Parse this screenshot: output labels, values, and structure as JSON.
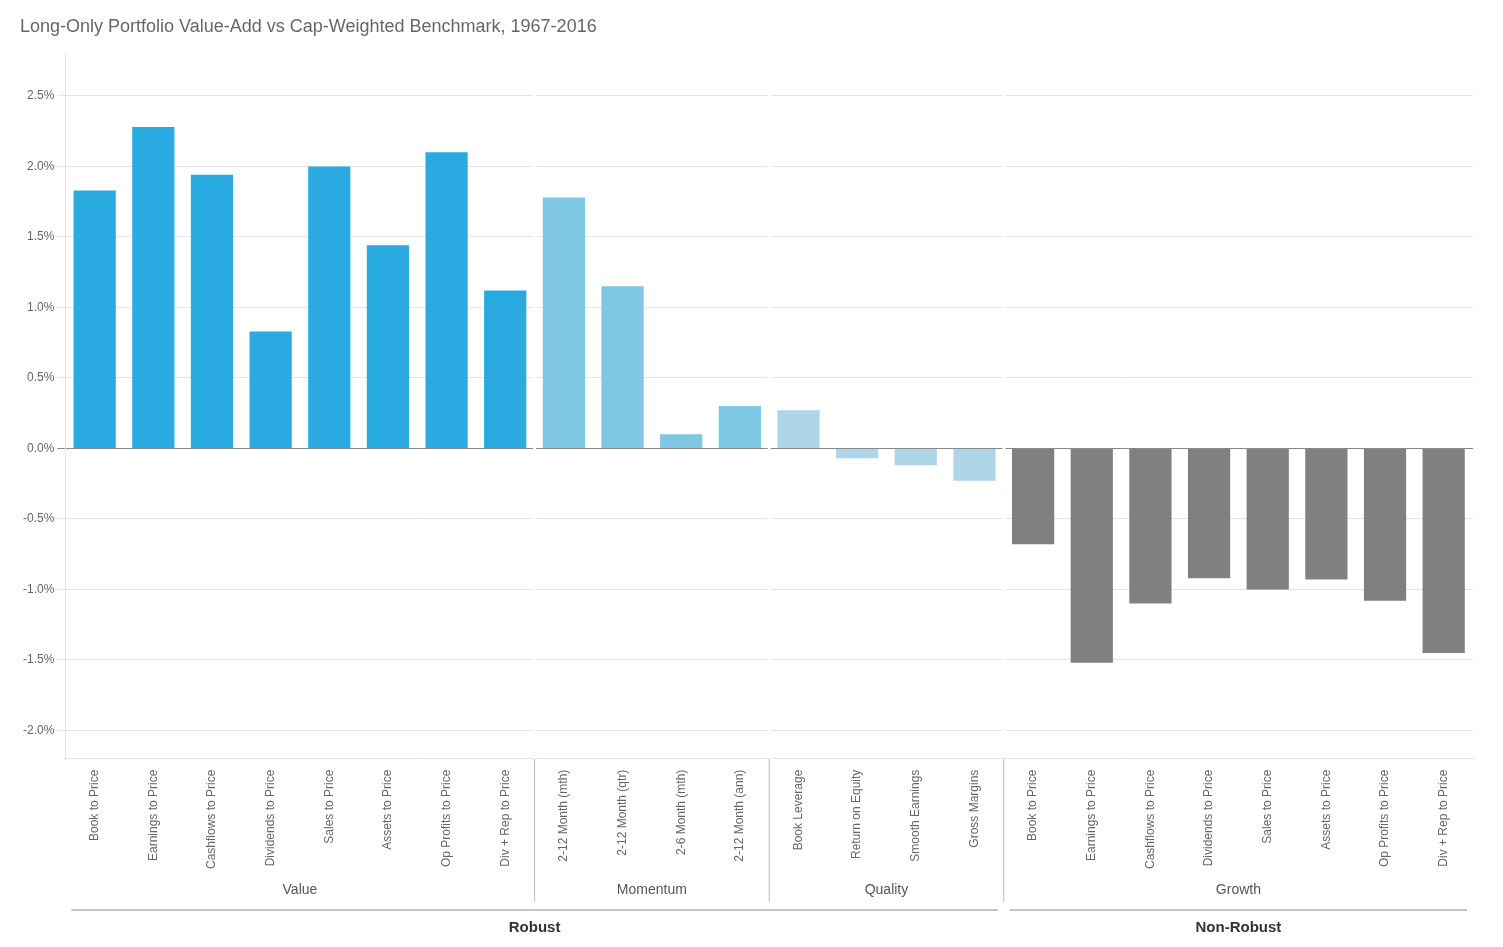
{
  "chart_data": {
    "type": "bar",
    "title": "Long-Only Portfolio Value-Add vs Cap-Weighted Benchmark, 1967-2016",
    "categories": [
      "Book to Price",
      "Earnings to Price",
      "Cashflows to Price",
      "Dividends to Price",
      "Sales to Price",
      "Assets to Price",
      "Op Profits to Price",
      "Div + Rep to Price",
      "2-12 Month (mth)",
      "2-12 Month (qtr)",
      "2-6 Month (mth)",
      "2-12 Month (ann)",
      "Book Leverage",
      "Return on Equity",
      "Smooth Earnings",
      "Gross Margins",
      "Book to Price",
      "Earnings to Price",
      "Cashflows to Price",
      "Dividends to Price",
      "Sales to Price",
      "Assets to Price",
      "Op Profits to Price",
      "Div + Rep to Price"
    ],
    "values": [
      1.83,
      2.28,
      1.94,
      0.83,
      2.0,
      1.44,
      2.1,
      1.12,
      1.78,
      1.15,
      0.1,
      0.3,
      0.27,
      -0.07,
      -0.12,
      -0.23,
      -0.68,
      -1.52,
      -1.1,
      -0.92,
      -1.0,
      -0.93,
      -1.08,
      -1.45
    ],
    "colors": [
      "#29ABE2",
      "#29ABE2",
      "#29ABE2",
      "#29ABE2",
      "#29ABE2",
      "#29ABE2",
      "#29ABE2",
      "#29ABE2",
      "#7EC8E3",
      "#7EC8E3",
      "#7EC8E3",
      "#7EC8E3",
      "#AED6E8",
      "#AED6E8",
      "#AED6E8",
      "#AED6E8",
      "#808080",
      "#808080",
      "#808080",
      "#808080",
      "#808080",
      "#808080",
      "#808080",
      "#808080"
    ],
    "ylim": [
      -2.2,
      2.8
    ],
    "yticks": [
      {
        "value": -2.0,
        "label": "-2.0%"
      },
      {
        "value": -1.5,
        "label": "-1.5%"
      },
      {
        "value": -1.0,
        "label": "-1.0%"
      },
      {
        "value": -0.5,
        "label": "-0.5%"
      },
      {
        "value": 0.0,
        "label": "0.0%"
      },
      {
        "value": 0.5,
        "label": "0.5%"
      },
      {
        "value": 1.0,
        "label": "1.0%"
      },
      {
        "value": 1.5,
        "label": "1.5%"
      },
      {
        "value": 2.0,
        "label": "2.0%"
      },
      {
        "value": 2.5,
        "label": "2.5%"
      }
    ],
    "grid": true,
    "sections": [
      {
        "label": "Value",
        "first": 0,
        "last": 7
      },
      {
        "label": "Momentum",
        "first": 8,
        "last": 11
      },
      {
        "label": "Quality",
        "first": 12,
        "last": 15
      },
      {
        "label": "Growth",
        "first": 16,
        "last": 23
      }
    ],
    "section_groups": [
      {
        "label": "Robust",
        "sections": [
          "Value",
          "Momentum",
          "Quality"
        ]
      },
      {
        "label": "Non-Robust",
        "sections": [
          "Growth"
        ]
      }
    ]
  }
}
